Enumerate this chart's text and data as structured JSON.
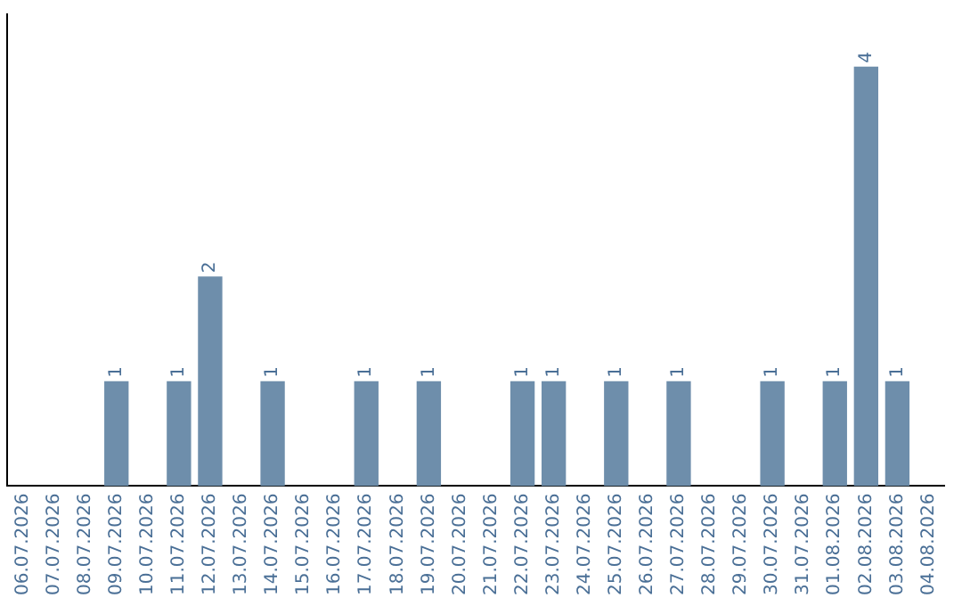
{
  "chart_data": {
    "type": "bar",
    "categories": [
      "06.07.2026",
      "07.07.2026",
      "08.07.2026",
      "09.07.2026",
      "10.07.2026",
      "11.07.2026",
      "12.07.2026",
      "13.07.2026",
      "14.07.2026",
      "15.07.2026",
      "16.07.2026",
      "17.07.2026",
      "18.07.2026",
      "19.07.2026",
      "20.07.2026",
      "21.07.2026",
      "22.07.2026",
      "23.07.2026",
      "24.07.2026",
      "25.07.2026",
      "26.07.2026",
      "27.07.2026",
      "28.07.2026",
      "29.07.2026",
      "30.07.2026",
      "31.07.2026",
      "01.08.2026",
      "02.08.2026",
      "03.08.2026",
      "04.08.2026"
    ],
    "values": [
      0,
      0,
      0,
      1,
      0,
      1,
      2,
      0,
      1,
      0,
      0,
      1,
      0,
      1,
      0,
      0,
      1,
      1,
      0,
      1,
      0,
      1,
      0,
      0,
      1,
      0,
      1,
      4,
      1,
      0
    ],
    "color": "#6e8eab",
    "value_labels": [
      null,
      null,
      null,
      "1",
      null,
      "1",
      "2",
      null,
      "1",
      null,
      null,
      "1",
      null,
      "1",
      null,
      null,
      "1",
      "1",
      null,
      "1",
      null,
      "1",
      null,
      null,
      "1",
      null,
      "1",
      "4",
      "1",
      null
    ],
    "grid": false,
    "legend": false,
    "tick_labels": "x"
  }
}
